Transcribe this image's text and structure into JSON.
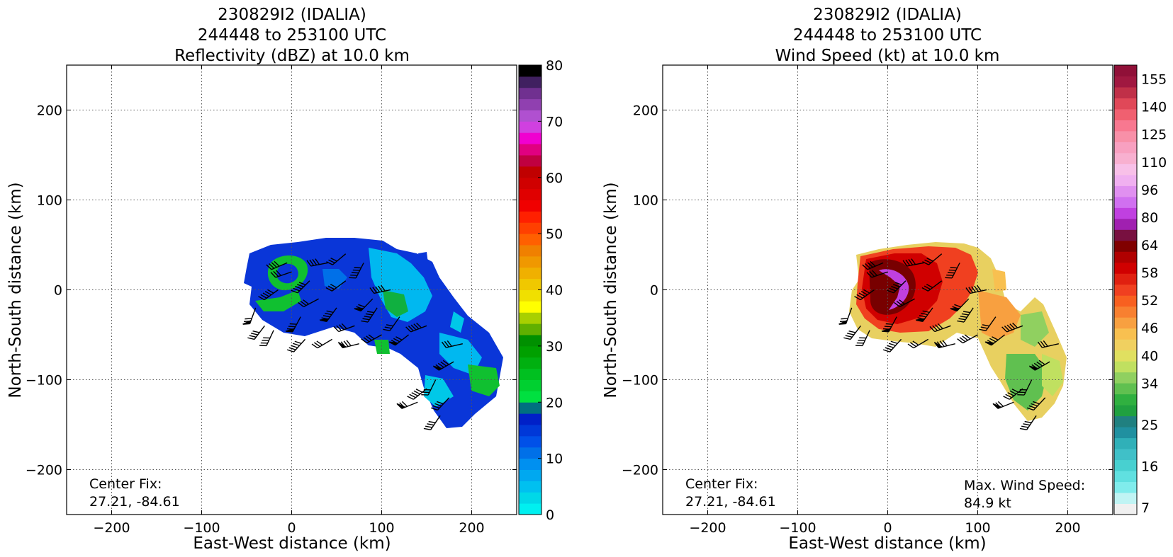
{
  "chart_data": [
    {
      "type": "heatmap",
      "title": [
        "230829I2 (IDALIA)",
        "244448 to 253100 UTC",
        "Reflectivity (dBZ) at 10.0 km"
      ],
      "xlabel": "East-West distance (km)",
      "ylabel": "North-South distance (km)",
      "xlim": [
        -250,
        250
      ],
      "ylim": [
        -250,
        250
      ],
      "xticks": [
        -200,
        -100,
        0,
        100,
        200
      ],
      "yticks": [
        -200,
        -100,
        0,
        100,
        200
      ],
      "grid": true,
      "annotations": [
        "Center Fix:",
        "27.21, -84.61"
      ],
      "colorbar": {
        "min": 0,
        "max": 80,
        "ticks": [
          0,
          10,
          20,
          30,
          40,
          50,
          60,
          70,
          80
        ],
        "colors": [
          "#00f0f0",
          "#00d8e8",
          "#00c0f0",
          "#00a8f0",
          "#0090f0",
          "#0070e8",
          "#0050e8",
          "#0038d8",
          "#0020c8",
          "#007080",
          "#00e040",
          "#00d030",
          "#00c020",
          "#00b010",
          "#00a000",
          "#009000",
          "#60b000",
          "#a8d000",
          "#ffff00",
          "#f0e000",
          "#f0c800",
          "#f0b000",
          "#f09800",
          "#f08000",
          "#ff6000",
          "#ff4000",
          "#ff2000",
          "#f00000",
          "#e00000",
          "#d00000",
          "#c00000",
          "#c00040",
          "#e00080",
          "#f000d0",
          "#d040e0",
          "#b050d0",
          "#9040b0",
          "#703090",
          "#402060",
          "#000000"
        ]
      },
      "center_fix": {
        "lat": 27.21,
        "lon": -84.61
      }
    },
    {
      "type": "heatmap",
      "title": [
        "230829I2 (IDALIA)",
        "244448 to 253100 UTC",
        "Wind Speed (kt) at 10.0 km"
      ],
      "xlabel": "East-West distance (km)",
      "ylabel": "North-South distance (km)",
      "xlim": [
        -250,
        250
      ],
      "ylim": [
        -250,
        250
      ],
      "xticks": [
        -200,
        -100,
        0,
        100,
        200
      ],
      "yticks": [
        -200,
        -100,
        0,
        100,
        200
      ],
      "grid": true,
      "annotations": [
        "Center Fix:",
        "27.21, -84.61",
        "Max. Wind Speed:",
        "84.9 kt"
      ],
      "colorbar": {
        "labels": [
          "7",
          "16",
          "25",
          "34",
          "40",
          "46",
          "52",
          "58",
          "64",
          "80",
          "96",
          "110",
          "125",
          "140",
          "155"
        ],
        "label_positions": [
          0,
          3,
          6,
          9,
          11,
          13,
          15,
          17,
          19,
          21,
          23,
          25,
          27,
          29,
          31
        ],
        "colors": [
          "#f0f0f0",
          "#c0f4f4",
          "#80ecec",
          "#60e0e0",
          "#48d0d0",
          "#40c0c8",
          "#30b0b8",
          "#2090a0",
          "#208080",
          "#20a040",
          "#30b040",
          "#60c050",
          "#90d060",
          "#c0e060",
          "#e0e060",
          "#f0d060",
          "#f8c050",
          "#f8a040",
          "#f88030",
          "#f86020",
          "#f04020",
          "#e02010",
          "#d00000",
          "#b00000",
          "#800000",
          "#781040",
          "#a020b0",
          "#c040e0",
          "#d070f0",
          "#e090f0",
          "#f0b0f0",
          "#f8c0e8",
          "#f8b0d0",
          "#f8a0c0",
          "#f890a8",
          "#f87890",
          "#f06070",
          "#e04858",
          "#c03048",
          "#a01840",
          "#901038"
        ]
      },
      "center_fix": {
        "lat": 27.21,
        "lon": -84.61
      },
      "max_wind_speed_kt": 84.9
    }
  ]
}
